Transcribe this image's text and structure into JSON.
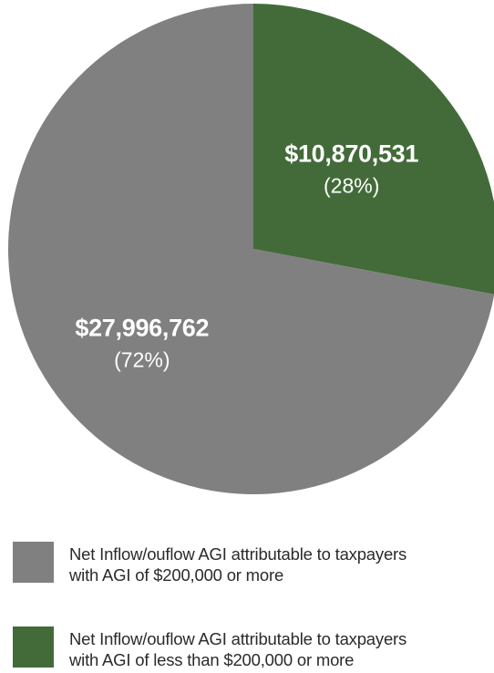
{
  "chart_data": {
    "type": "pie",
    "slices": [
      {
        "label": "Net Inflow/ouflow AGI attributable to taxpayers with AGI of less than $200,000 or more",
        "value": 10870531,
        "value_text": "$10,870,531",
        "percent_text": "(28%)",
        "color": "#436b39"
      },
      {
        "label": "Net Inflow/ouflow AGI attributable to taxpayers with AGI of $200,000 or more",
        "value": 27996762,
        "value_text": "$27,996,762",
        "percent_text": "(72%)",
        "color": "#808080"
      }
    ],
    "start_angle": "12 o'clock",
    "direction": "clockwise",
    "legend_position": "bottom",
    "title": ""
  },
  "legend": {
    "items": [
      {
        "label_line1": "Net Inflow/ouflow AGI attributable to taxpayers",
        "label_line2": "with AGI of $200,000 or more",
        "color": "#808080"
      },
      {
        "label_line1": "Net Inflow/ouflow AGI attributable to taxpayers",
        "label_line2": "with AGI of less than $200,000 or more",
        "color": "#436b39"
      }
    ]
  }
}
